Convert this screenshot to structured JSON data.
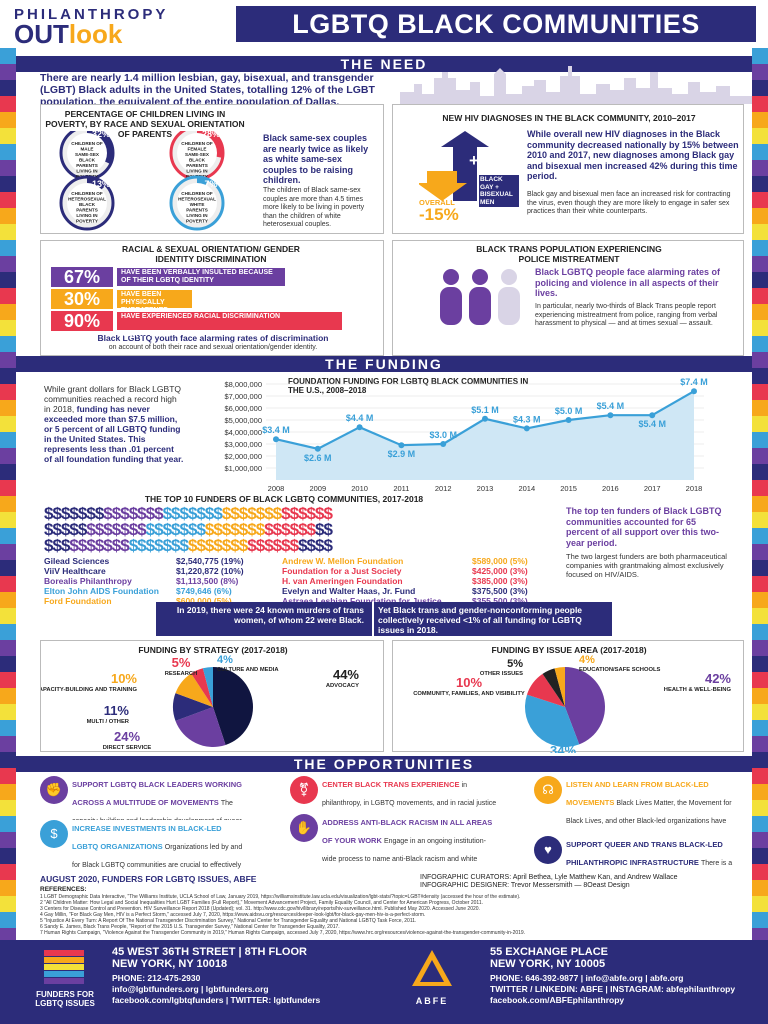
{
  "header": {
    "logo_top": "PHILANTHROPY",
    "logo_main": "OUTlook",
    "title": "LGBTQ BLACK COMMUNITIES"
  },
  "need": {
    "section_title": "THE NEED",
    "intro": "There are nearly 1.4 million lesbian, gay, bisexual, and transgender (LGBT) Black adults in the United States, totalling 12% of the LGBT population, the equivalent of the entire population of Dallas.",
    "poverty": {
      "title": "PERCENTAGE OF CHILDREN LIVING IN POVERTY, BY RACE AND SEXUAL ORIENTATION OF PARENTS",
      "items": [
        {
          "pct": "32%",
          "label": "CHILDREN OF MALE SAME-SEX BLACK PARENTS LIVING IN POVERTY",
          "value": 32
        },
        {
          "pct": "28%",
          "label": "CHILDREN OF FEMALE SAME-SEX BLACK PARENTS LIVING IN POVERTY",
          "value": 28
        },
        {
          "pct": "13%",
          "label": "CHILDREN OF HETEROSEXUAL BLACK PARENTS LIVING IN POVERTY",
          "value": 13
        },
        {
          "pct": "7%",
          "label": "CHILDREN OF HETEROSEXUAL WHITE PARENTS LIVING IN POVERTY",
          "value": 7
        }
      ],
      "headline": "Black same-sex couples are nearly twice as likely as white same-sex couples to be raising children.",
      "body": "The children of Black same-sex couples are more than 4.5 times more likely to be living in poverty than the children of white heterosexual couples."
    },
    "hiv": {
      "title": "NEW HIV DIAGNOSES IN THE BLACK COMMUNITY, 2010–2017",
      "up_pct": "+42%",
      "up_label": "BLACK GAY + BISEXUAL MEN",
      "down_label": "OVERALL",
      "down_pct": "-15%",
      "headline": "While overall new HIV diagnoses in the Black community decreased nationally by 15% between 2010 and 2017, new diagnoses among Black gay and bisexual men increased 42% during this time period.",
      "body": "Black gay and bisexual men face an increased risk for contracting the virus, even though they are more likely to engage in safer sex practices than their white counterparts."
    },
    "discrimination": {
      "title": "RACIAL & SEXUAL ORIENTATION/ GENDER IDENTITY DISCRIMINATION",
      "bars": [
        {
          "pct": "67%",
          "label": "HAVE BEEN VERBALLY INSULTED BECAUSE OF THEIR LGBTQ IDENTITY",
          "value": 67,
          "color": "#6b3fa0"
        },
        {
          "pct": "30%",
          "label": "HAVE BEEN PHYSICALLY THREATENED BECAUSE OF THEIR LGBTQ IDENTITY",
          "value": 30,
          "color": "#f7a81b"
        },
        {
          "pct": "90%",
          "label": "HAVE EXPERIENCED RACIAL DISCRIMINATION",
          "value": 90,
          "color": "#e8384f"
        }
      ],
      "caption_bold": "Black LGBTQ youth face alarming rates of discrimination",
      "caption": "on account of both their race and sexual orientation/gender identity."
    },
    "trans": {
      "title": "BLACK TRANS POPULATION EXPERIENCING POLICE MISTREATMENT",
      "headline": "Black LGBTQ people face alarming rates of policing and violence in all aspects of their lives.",
      "body": "In particular, nearly two-thirds of Black Trans people report experiencing mistreatment from police, ranging from verbal harassment to physical — and at times sexual — assault."
    }
  },
  "funding": {
    "section_title": "THE FUNDING",
    "intro_plain": "While grant dollars for Black LGBTQ communities reached a record high in 2018,",
    "intro_bold": "funding has never exceeded more than $7.5 million, or 5 percent of all LGBTQ funding in the United States. This represents less than .01 percent of all foundation funding that year.",
    "chart_title": "FOUNDATION FUNDING FOR LGBTQ BLACK COMMUNITIES IN THE U.S., 2008–2018"
  },
  "chart_data": [
    {
      "type": "line",
      "title": "FOUNDATION FUNDING FOR LGBTQ BLACK COMMUNITIES IN THE U.S., 2008–2018",
      "x": [
        "2008",
        "2009",
        "2010",
        "2011",
        "2012",
        "2013",
        "2014",
        "2015",
        "2016",
        "2017",
        "2018"
      ],
      "values": [
        3.4,
        2.6,
        4.4,
        2.9,
        3.0,
        5.1,
        4.3,
        5.0,
        5.4,
        5.4,
        7.4
      ],
      "labels": [
        "$3.4 M",
        "$2.6 M",
        "$4.4 M",
        "$2.9 M",
        "$3.0 M",
        "$5.1 M",
        "$4.3 M",
        "$5.0 M",
        "$5.4 M",
        "$5.4 M",
        "$7.4 M"
      ],
      "yticks": [
        "$8,000,000",
        "$7,000,000",
        "$6,000,000",
        "$5,000,000",
        "$4,000,000",
        "$3,000,000",
        "$2,000,000",
        "$1,000,000"
      ],
      "ylim": [
        0,
        8
      ]
    },
    {
      "type": "pie",
      "title": "FUNDING BY STRATEGY (2017-2018)",
      "slices": [
        {
          "name": "ADVOCACY",
          "pct": "44%",
          "value": 44,
          "color": "#101540"
        },
        {
          "name": "DIRECT SERVICE",
          "pct": "24%",
          "value": 24,
          "color": "#6b3fa0"
        },
        {
          "name": "MULTI / OTHER",
          "pct": "11%",
          "value": 11,
          "color": "#2c2c7a"
        },
        {
          "name": "CAPACITY-BUILDING AND TRAINING",
          "pct": "10%",
          "value": 10,
          "color": "#f7a81b"
        },
        {
          "name": "RESEARCH",
          "pct": "5%",
          "value": 5,
          "color": "#e8384f"
        },
        {
          "name": "CULTURE AND MEDIA",
          "pct": "4%",
          "value": 4,
          "color": "#3aa0d8"
        }
      ]
    },
    {
      "type": "pie",
      "title": "FUNDING BY ISSUE AREA (2017-2018)",
      "slices": [
        {
          "name": "HEALTH & WELL-BEING",
          "pct": "42%",
          "value": 42,
          "color": "#6b3fa0"
        },
        {
          "name": "CIVIL / HUMAN RIGHTS",
          "pct": "34%",
          "value": 34,
          "color": "#3aa0d8"
        },
        {
          "name": "COMMUNITY, FAMILIES, AND VISIBILITY",
          "pct": "10%",
          "value": 10,
          "color": "#e8384f"
        },
        {
          "name": "OTHER ISSUES",
          "pct": "5%",
          "value": 5,
          "color": "#222222"
        },
        {
          "name": "EDUCATION/SAFE SCHOOLS",
          "pct": "4%",
          "value": 4,
          "color": "#f7a81b"
        }
      ]
    }
  ],
  "top10": {
    "title": "THE TOP 10 FUNDERS OF BLACK LGBTQ COMMUNITIES, 2017-2018",
    "col1": [
      {
        "name": "Gilead Sciences",
        "amt": "$2,540,775 (19%)",
        "color": "#2c2c7a"
      },
      {
        "name": "ViiV Healthcare",
        "amt": "$1,220,872 (10%)",
        "color": "#2c2c7a"
      },
      {
        "name": "Borealis Philanthropy",
        "amt": "$1,113,500 (8%)",
        "color": "#6b3fa0"
      },
      {
        "name": "Elton John AIDS Foundation",
        "amt": "$749,646 (6%)",
        "color": "#3aa0d8"
      },
      {
        "name": "Ford Foundation",
        "amt": "$600,000 (5%)",
        "color": "#f7a81b"
      }
    ],
    "col2": [
      {
        "name": "Andrew W. Mellon Foundation",
        "amt": "$589,000 (5%)",
        "color": "#f7a81b"
      },
      {
        "name": "Foundation for a Just Society",
        "amt": "$425,000 (3%)",
        "color": "#e8384f"
      },
      {
        "name": "H. van Ameringen Foundation",
        "amt": "$385,000 (3%)",
        "color": "#e8384f"
      },
      {
        "name": "Evelyn and Walter Haas, Jr. Fund",
        "amt": "$375,500 (3%)",
        "color": "#2c2c7a"
      },
      {
        "name": "Astraea Lesbian Foundation for Justice",
        "amt": "$355,500 (3%)",
        "color": "#6b3fa0"
      }
    ],
    "side_bold": "The top ten funders of Black LGBTQ communities accounted for 65 percent of all support over this two-year period.",
    "side_body": "The two largest funders are both pharmaceutical companies with grantmaking almost exclusively focused on HIV/AIDS."
  },
  "trans_stat": {
    "left": "In 2019, there were 24 known murders of trans women, of whom 22 were Black.",
    "right": "Yet Black trans and gender-nonconforming people collectively received <1% of all funding for LGBTQ issues in 2018."
  },
  "opps": {
    "section_title": "THE OPPORTUNITIES",
    "items": [
      {
        "head": "SUPPORT LGBTQ BLACK LEADERS WORKING ACROSS A MULTITUDE OF MOVEMENTS",
        "body": "The capacity-building and leadership development of queer Black leaders is essential to building sustainable movements, from racial justice and economic justice, to LGBTQ rights, reproductive justice and immigrant rights."
      },
      {
        "head": "INCREASE INVESTMENTS IN BLACK-LED LGBTQ ORGANIZATIONS",
        "body": "Organizations led by and for Black LGBTQ communities are crucial to effectively addressing the intersections of anti-Black racism, homophobia, and transphobia. Funders have an opportunity to support this diverse ecosystem, ranging from national organizations such as the Center for Black Equity, the Marsha P. Johnson Institute, and the National Black Justice Coalition to grassroots groups such as Black Trans Media in New York, Brave Space Alliance in Chicago, House of GG in Arkansas, The Knights & Orchids Society in Alabama, and TGI Justice Project in California."
      },
      {
        "head": "CENTER BLACK TRANS EXPERIENCE",
        "body": "in philanthropy, in LGBTQ movements, and in racial justice movements, the experiences and wisdom of Black trans women/especially Black Transwomen—are often marginalized and rendered invisible. Work proactively in your foundation and with grantees to center the lived experience of Black Trans people and support Black Trans leaders."
      },
      {
        "head": "ADDRESS ANTI-BLACK RACISM IN ALL AREAS OF YOUR WORK",
        "body": "Engage in an ongoing institution-wide process to name anti-Black racism and white supremacist practices in your work as you embed diversity, equity, and social justice across all aspects of the organization. This includes at the board level, in human resources, grantmaking, communications, thought leadership, and more. Institution-wide learning and evaluation, as well as in the development of tactical strategies to ensure your organization always includes Black leadership at all levels."
      },
      {
        "head": "LISTEN AND LEARN FROM BLACK-LED MOVEMENTS",
        "body": "Black Lives Matter, the Movement for Black Lives, and other Black-led organizations have developed informed policy recommendations on issues ranging from developing economic justice programs to divesting from industries that criminalize Black people. Funders have an opportunity to listen to these movement leaders and integrate their movement frameworks into their own grantmaking and public thought leadership."
      },
      {
        "head": "SUPPORT QUEER AND TRANS BLACK-LED PHILANTHROPIC INFRASTRUCTURE",
        "body": "There is a growing field of queer and Trans Black-led philanthropic funds, ranging from intergenerational funds such as the Black Trans Travel Fund in New York and Contigo's All Black Lives Fund in Orlando to national and regional ones such as the Black Trans Fund and the Southern Power Fund. Supporting these helps build sustainable funding led by and for Black LGBTQ communities."
      }
    ]
  },
  "credits": {
    "date": "AUGUST 2020, FUNDERS FOR LGBTQ ISSUES, ABFE",
    "curators": "INFOGRAPHIC CURATORS: April Bethea, Lyle Matthew Kan, and Andrew Wallace",
    "designer": "INFOGRAPHIC DESIGNER: Trevor Messersmith — 8Oeast Design",
    "refs_title": "REFERENCES:",
    "refs": [
      "1   LGBT Demographic Data Interactive, \"The Williams Institute, UCLA School of Law, January 2019, https://williamsinstitute.law.ucla.edu/visualization/lgbt-stats/?topic=LGBT#density (accessed the hour of the estimate).",
      "2   \"All Children Matter: How Legal and Social Inequalities Hurt LGBT Families (Full Report),\" Movement Advancement Project, Family Equality Council, and Center for American Progress, October 2011.",
      "3   Centers for Disease Control and Prevention. HIV Surveillance Report 2018 (Updated); vol. 31. http://www.cdc.gov/hiv/library/reports/hiv-surveillance.html. Published May 2020. Accessed June 2020.",
      "4   Gay Millin, \"For Black Gay Men, HIV is a Perfect Storm,\" accessed July 7, 2020, https://www.aidsvu.org/resources/deeper-look-lgbt/for-black-gay-men-hiv-is-a-perfect-storm.",
      "5   \"Injustice At Every Turn: A Report Of The National Transgender Discrimination Survey,\" National Center for Transgender Equality and National LGBTQ Task Force, 2011.",
      "6   Sandy E. James, Black Trans People, \"Report of the 2015 U.S. Transgender Survey,\" National Center for Transgender Equality, 2017.",
      "7   Human Rights Campaign, \"Violence Against the Transgender Community in 2019,\" Human Rights Campaign, accessed July 7, 2020, https://www.hrc.org/resources/violence-against-the-transgender-community-in-2019."
    ]
  },
  "footer": {
    "org1": "FUNDERS FOR LGBTQ ISSUES",
    "addr1_line1": "45 WEST 36TH STREET  |  8TH FLOOR",
    "addr1_line2": "NEW YORK, NY 10018",
    "addr1_phone": "PHONE: 212-475-2930",
    "addr1_web": "info@lgbtfunders.org  |  lgbtfunders.org",
    "addr1_social": "facebook.com/lgbtqfunders  |  TWITTER: lgbtfunders",
    "org2": "ABFE",
    "addr2_line1": "55 EXCHANGE PLACE",
    "addr2_line2": "NEW YORK, NY 10005",
    "addr2_phone": "PHONE: 646-392-9877  |  info@abfe.org  |  abfe.org",
    "addr2_social": "TWITTER / LINKEDIN: ABFE  |  INSTAGRAM: abfephilanthropy",
    "addr2_fb": "facebook.com/ABFEphilanthropy"
  }
}
